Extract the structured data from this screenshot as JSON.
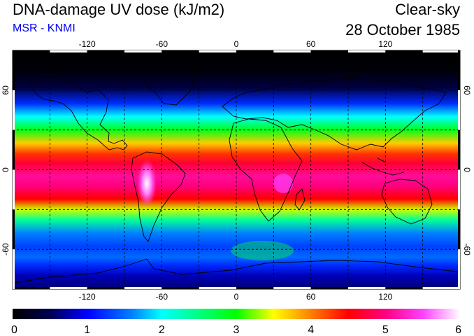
{
  "header": {
    "title": "DNA-damage UV dose (kJ/m2)",
    "subtitle": "MSR - KNMI",
    "condition": "Clear-sky",
    "date": "28 October 1985"
  },
  "colors": {
    "subtitle": "#0000ee",
    "frame_border": "#000000",
    "frame_ticks": "#ffffff",
    "grid": "#000000"
  },
  "map": {
    "projection": "equirectangular",
    "lon_range": [
      -180,
      180
    ],
    "lat_range": [
      -90,
      90
    ],
    "lon_ticks": [
      {
        "value": -120,
        "label": "-120"
      },
      {
        "value": -60,
        "label": "-60"
      },
      {
        "value": 0,
        "label": "0"
      },
      {
        "value": 60,
        "label": "60"
      },
      {
        "value": 120,
        "label": "120"
      }
    ],
    "lat_ticks": [
      {
        "value": 60,
        "label": "60"
      },
      {
        "value": 0,
        "label": "0"
      },
      {
        "value": -60,
        "label": "-60"
      }
    ],
    "grid_lons": [
      -150,
      -120,
      -90,
      -60,
      -30,
      0,
      30,
      60,
      90,
      120,
      150
    ],
    "grid_lats": [
      60,
      30,
      0,
      -30,
      -60
    ],
    "grid_style": "dashed",
    "coastlines": true
  },
  "colorbar": {
    "min": 0,
    "max": 6,
    "labels": [
      "0",
      "1",
      "2",
      "3",
      "4",
      "5",
      "6"
    ],
    "stops": [
      {
        "value": 0.0,
        "color": "#000000"
      },
      {
        "value": 0.5,
        "color": "#000050"
      },
      {
        "value": 1.0,
        "color": "#0000ff"
      },
      {
        "value": 1.6,
        "color": "#0080ff"
      },
      {
        "value": 2.0,
        "color": "#00ffff"
      },
      {
        "value": 2.5,
        "color": "#00ff80"
      },
      {
        "value": 3.0,
        "color": "#00ff00"
      },
      {
        "value": 3.5,
        "color": "#ffff00"
      },
      {
        "value": 4.0,
        "color": "#ff8000"
      },
      {
        "value": 4.5,
        "color": "#ff0000"
      },
      {
        "value": 5.0,
        "color": "#ff0080"
      },
      {
        "value": 5.5,
        "color": "#ff40ff"
      },
      {
        "value": 6.0,
        "color": "#ffffff"
      }
    ]
  }
}
